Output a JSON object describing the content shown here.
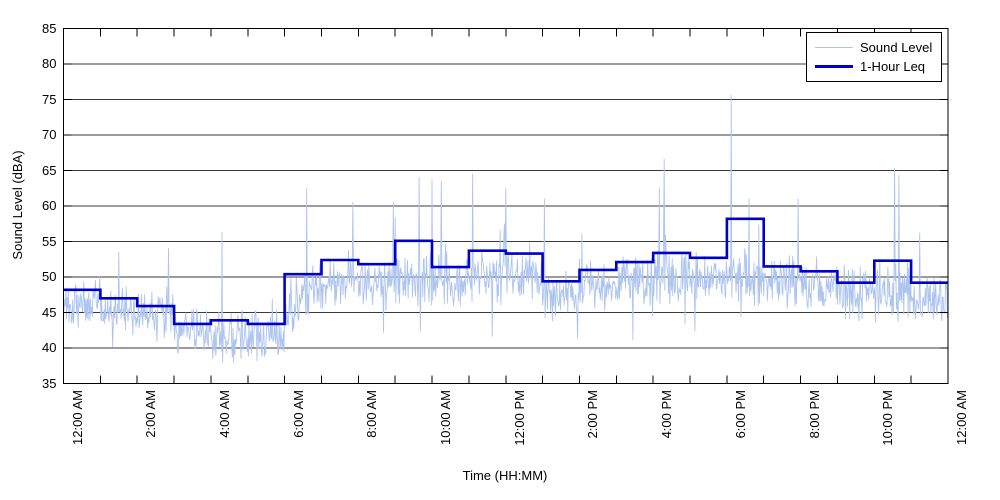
{
  "chart_data": {
    "type": "line",
    "title": "",
    "xlabel": "Time (HH:MM)",
    "ylabel": "Sound Level (dBA)",
    "ylim": [
      35,
      85
    ],
    "xlim_hours": [
      0,
      24
    ],
    "y_ticks": [
      35,
      40,
      45,
      50,
      55,
      60,
      65,
      70,
      75,
      80,
      85
    ],
    "x_tick_hours": [
      0,
      2,
      4,
      6,
      8,
      10,
      12,
      14,
      16,
      18,
      20,
      22,
      24
    ],
    "x_minor_tick_every_hours": 1,
    "x_tick_labels": [
      "12:00 AM",
      "2:00 AM",
      "4:00 AM",
      "6:00 AM",
      "8:00 AM",
      "10:00 AM",
      "12:00 PM",
      "2:00 PM",
      "4:00 PM",
      "6:00 PM",
      "8:00 PM",
      "10:00 PM",
      "12:00 AM"
    ],
    "grid": {
      "horizontal": true,
      "vertical": false
    },
    "legend": {
      "position": "top-right",
      "entries": [
        {
          "label": "Sound Level",
          "color": "#aec4f0",
          "line_width": 1
        },
        {
          "label": "1-Hour Leq",
          "color": "#0000cc",
          "line_width": 3
        }
      ]
    },
    "series": [
      {
        "name": "1-Hour Leq",
        "type": "step-hourly",
        "hourly_values": [
          48.2,
          47.0,
          45.9,
          43.4,
          43.9,
          43.4,
          50.4,
          52.4,
          51.8,
          55.1,
          51.4,
          53.7,
          53.3,
          49.4,
          51.0,
          52.1,
          53.4,
          52.7,
          58.2,
          51.5,
          50.8,
          49.2,
          52.3,
          49.2
        ]
      },
      {
        "name": "Sound Level",
        "type": "noisy-minute",
        "seed": 1337,
        "points_per_hour": 60,
        "value_floor": 38,
        "hour_profile": [
          {
            "m": 46.5,
            "s": 2.2,
            "sp": 0.05,
            "sx": 53,
            "dp": 0.02
          },
          {
            "m": 45.5,
            "s": 2.2,
            "sp": 0.04,
            "sx": 52,
            "dp": 0.03
          },
          {
            "m": 44.5,
            "s": 2.2,
            "sp": 0.05,
            "sx": 54,
            "dp": 0.04
          },
          {
            "m": 42.5,
            "s": 2.0,
            "sp": 0.03,
            "sx": 50,
            "dp": 0.08
          },
          {
            "m": 41.5,
            "s": 2.2,
            "sp": 0.04,
            "sx": 50,
            "dp": 0.09
          },
          {
            "m": 42.0,
            "s": 2.3,
            "sp": 0.03,
            "sx": 50,
            "dp": 0.09
          },
          {
            "m": 45.0,
            "m2": 49.5,
            "s": 2.3,
            "sp": 0.06,
            "sx": 57,
            "dp": 0.02
          },
          {
            "m": 49.5,
            "s": 2.3,
            "sp": 0.08,
            "sx": 57,
            "dp": 0.02
          },
          {
            "m": 49.0,
            "s": 2.3,
            "sp": 0.08,
            "sx": 58,
            "dp": 0.02
          },
          {
            "m": 50.0,
            "s": 2.5,
            "sp": 0.1,
            "sx": 63,
            "dp": 0.02
          },
          {
            "m": 49.0,
            "s": 2.4,
            "sp": 0.08,
            "sx": 59,
            "dp": 0.02
          },
          {
            "m": 50.0,
            "s": 2.5,
            "sp": 0.09,
            "sx": 62,
            "dp": 0.02
          },
          {
            "m": 50.0,
            "s": 2.4,
            "sp": 0.08,
            "sx": 61,
            "dp": 0.02
          },
          {
            "m": 47.5,
            "s": 2.4,
            "sp": 0.06,
            "sx": 58,
            "dp": 0.03
          },
          {
            "m": 48.5,
            "s": 2.4,
            "sp": 0.07,
            "sx": 58,
            "dp": 0.02
          },
          {
            "m": 49.5,
            "s": 2.5,
            "sp": 0.08,
            "sx": 60,
            "dp": 0.02
          },
          {
            "m": 50.0,
            "s": 2.5,
            "sp": 0.08,
            "sx": 62,
            "dp": 0.02
          },
          {
            "m": 50.0,
            "s": 2.4,
            "sp": 0.08,
            "sx": 59,
            "dp": 0.02
          },
          {
            "m": 50.0,
            "s": 2.5,
            "sp": 0.08,
            "sx": 60,
            "dp": 0.02
          },
          {
            "m": 49.5,
            "s": 2.4,
            "sp": 0.07,
            "sx": 58,
            "dp": 0.02
          },
          {
            "m": 48.5,
            "s": 2.4,
            "sp": 0.06,
            "sx": 58,
            "dp": 0.03
          },
          {
            "m": 47.5,
            "s": 2.4,
            "sp": 0.06,
            "sx": 56,
            "dp": 0.03
          },
          {
            "m": 48.0,
            "s": 2.4,
            "sp": 0.07,
            "sx": 58,
            "dp": 0.03
          },
          {
            "m": 47.0,
            "s": 2.4,
            "sp": 0.06,
            "sx": 55,
            "dp": 0.03
          }
        ],
        "spikes": [
          [
            1.5,
            53.5
          ],
          [
            2.85,
            54.0
          ],
          [
            4.3,
            56.3
          ],
          [
            6.6,
            62.5
          ],
          [
            7.85,
            60.5
          ],
          [
            8.95,
            60.5
          ],
          [
            9.65,
            64.0
          ],
          [
            10.0,
            63.7
          ],
          [
            10.25,
            63.5
          ],
          [
            11.1,
            64.5
          ],
          [
            12.0,
            62.5
          ],
          [
            13.05,
            61.0
          ],
          [
            16.3,
            66.6
          ],
          [
            18.12,
            75.6
          ],
          [
            18.6,
            61.0
          ],
          [
            19.93,
            61.0
          ],
          [
            22.55,
            65.3
          ],
          [
            22.67,
            64.3
          ],
          [
            23.24,
            56.2
          ]
        ]
      }
    ]
  },
  "colors": {
    "background": "#ffffff",
    "axis": "#000000",
    "grid": "#3a3a3a",
    "sound_level": "#aec4f0",
    "leq": "#0000cc",
    "text": "#000000"
  }
}
